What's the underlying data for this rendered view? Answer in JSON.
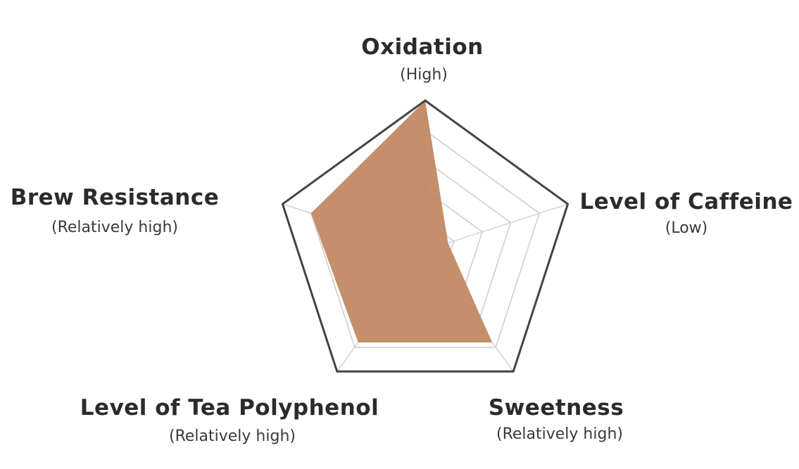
{
  "chart_data": {
    "type": "radar",
    "levels": 5,
    "max": 5,
    "axes": [
      {
        "name": "Oxidation",
        "qualifier": "(High)",
        "value": 5.0
      },
      {
        "name": "Level of Caffeine",
        "qualifier": "(Low)",
        "value": 0.8
      },
      {
        "name": "Sweetness",
        "qualifier": "(Relatively high)",
        "value": 3.8
      },
      {
        "name": "Level of Tea Polyphenol",
        "qualifier": "(Relatively high)",
        "value": 3.8
      },
      {
        "name": "Brew Resistance",
        "qualifier": "(Relatively high)",
        "value": 4.0
      }
    ],
    "colors": {
      "fill": "#bf875f",
      "outline": "#444444",
      "grid": "#cfcfcf"
    }
  }
}
